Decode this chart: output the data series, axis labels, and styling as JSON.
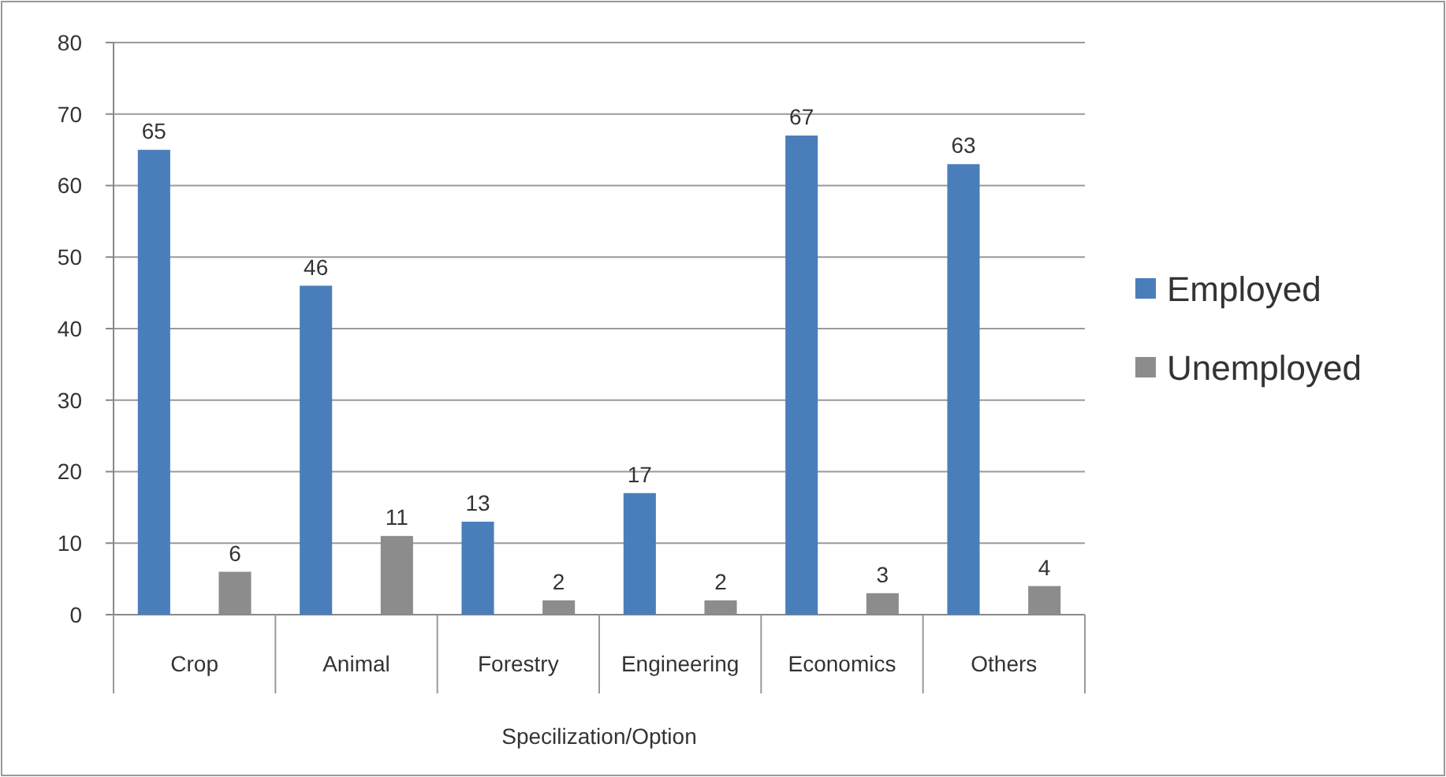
{
  "chart_data": {
    "type": "bar",
    "xlabel": "Specilization/Option",
    "categories": [
      "Crop",
      "Animal",
      "Forestry",
      "Engineering",
      "Economics",
      "Others"
    ],
    "series": [
      {
        "name": "Employed",
        "color": "#4a7ebb",
        "values": [
          65,
          46,
          13,
          17,
          67,
          63
        ]
      },
      {
        "name": "Unemployed",
        "color": "#8c8c8c",
        "values": [
          6,
          11,
          2,
          2,
          3,
          4
        ]
      }
    ],
    "ylim": [
      0,
      80
    ],
    "yticks": [
      0,
      10,
      20,
      30,
      40,
      50,
      60,
      70,
      80
    ],
    "grid": "y",
    "legend": "right",
    "data_labels": true
  }
}
